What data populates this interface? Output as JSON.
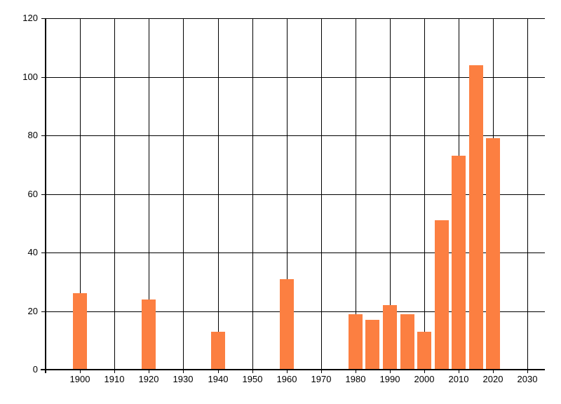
{
  "chart_data": {
    "type": "bar",
    "title": "",
    "xlabel": "",
    "ylabel": "",
    "legend": false,
    "grid": true,
    "x": [
      1900,
      1920,
      1940,
      1960,
      1980,
      1985,
      1990,
      1995,
      2000,
      2005,
      2010,
      2015,
      2020
    ],
    "values": [
      26,
      24,
      13,
      31,
      19,
      17,
      22,
      19,
      13,
      51,
      73,
      104,
      79
    ],
    "x_axis": {
      "min": 1890,
      "max": 2035,
      "ticks": [
        1900,
        1910,
        1920,
        1930,
        1940,
        1950,
        1960,
        1970,
        1980,
        1990,
        2000,
        2010,
        2020,
        2030
      ],
      "tick_labels": [
        "1900",
        "1910",
        "1920",
        "1930",
        "1940",
        "1950",
        "1960",
        "1970",
        "1980",
        "1990",
        "2000",
        "2010",
        "2020",
        "2030"
      ]
    },
    "y_axis": {
      "min": 0,
      "max": 120,
      "ticks": [
        0,
        20,
        40,
        60,
        80,
        100,
        120
      ],
      "tick_labels": [
        "0",
        "20",
        "40",
        "60",
        "80",
        "100",
        "120"
      ]
    },
    "colors": {
      "bar": "#FC7F41",
      "grid": "#000000",
      "axis": "#000000",
      "text": "#000000",
      "background": "#FFFFFF"
    }
  }
}
